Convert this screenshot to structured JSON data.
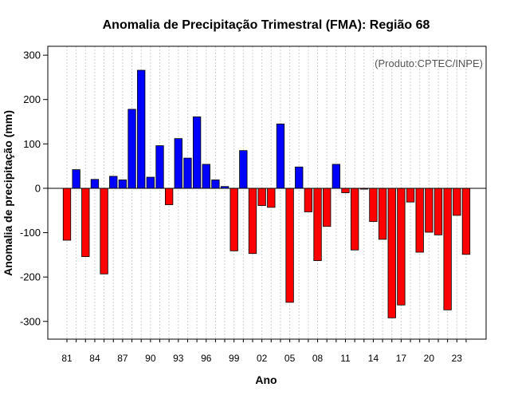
{
  "chart_data": {
    "type": "bar",
    "title": "Anomalia de Precipitação Trimestral (FMA): Região 68",
    "xlabel": "Ano",
    "ylabel": "Anomalia de precipitação (mm)",
    "credit": "(Produto:CPTEC/INPE)",
    "ylim": [
      -340,
      320
    ],
    "yticks": [
      -300,
      -200,
      -100,
      0,
      100,
      200,
      300
    ],
    "grid": true,
    "categories": [
      "81",
      "82",
      "83",
      "84",
      "85",
      "86",
      "87",
      "88",
      "89",
      "90",
      "91",
      "92",
      "93",
      "94",
      "95",
      "96",
      "97",
      "98",
      "99",
      "00",
      "01",
      "02",
      "03",
      "04",
      "05",
      "06",
      "07",
      "08",
      "09",
      "10",
      "11",
      "12",
      "13",
      "14",
      "15",
      "16",
      "17",
      "18",
      "19",
      "20",
      "21",
      "22",
      "23",
      "24"
    ],
    "xtick_labels": [
      "81",
      "84",
      "87",
      "90",
      "93",
      "96",
      "99",
      "02",
      "05",
      "08",
      "11",
      "14",
      "17",
      "20",
      "23"
    ],
    "values": [
      -117,
      42,
      -154,
      20,
      -193,
      27,
      19,
      178,
      266,
      25,
      96,
      -37,
      112,
      68,
      161,
      54,
      19,
      4,
      -141,
      85,
      -147,
      -39,
      -43,
      145,
      -257,
      48,
      -53,
      -163,
      -86,
      54,
      -10,
      -139,
      -2,
      -75,
      -115,
      -292,
      -263,
      -31,
      -144,
      -99,
      -105,
      -274,
      -61,
      -149
    ],
    "colors": {
      "positive": "#0000ff",
      "negative": "#ff0000"
    }
  }
}
